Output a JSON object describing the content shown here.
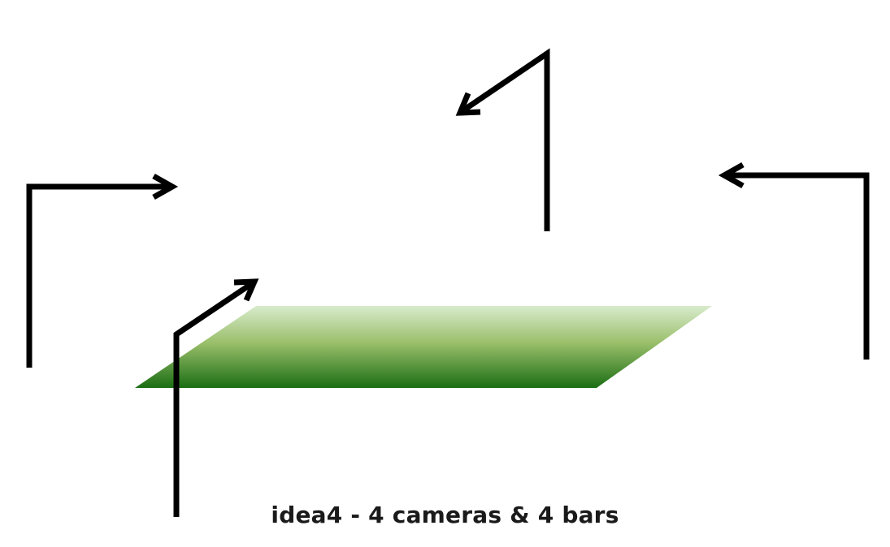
{
  "caption": "idea4 - 4 cameras & 4 bars",
  "colors": {
    "plane_top": "#d8ebcc",
    "plane_mid": "#9abf6a",
    "plane_bottom": "#1b6e14",
    "stroke": "#000000",
    "caption": "#1a1a1a"
  },
  "cameras": [
    {
      "name": "camera-left",
      "direction": "right"
    },
    {
      "name": "camera-front",
      "direction": "up-right"
    },
    {
      "name": "camera-back",
      "direction": "down-left"
    },
    {
      "name": "camera-right",
      "direction": "left"
    }
  ]
}
